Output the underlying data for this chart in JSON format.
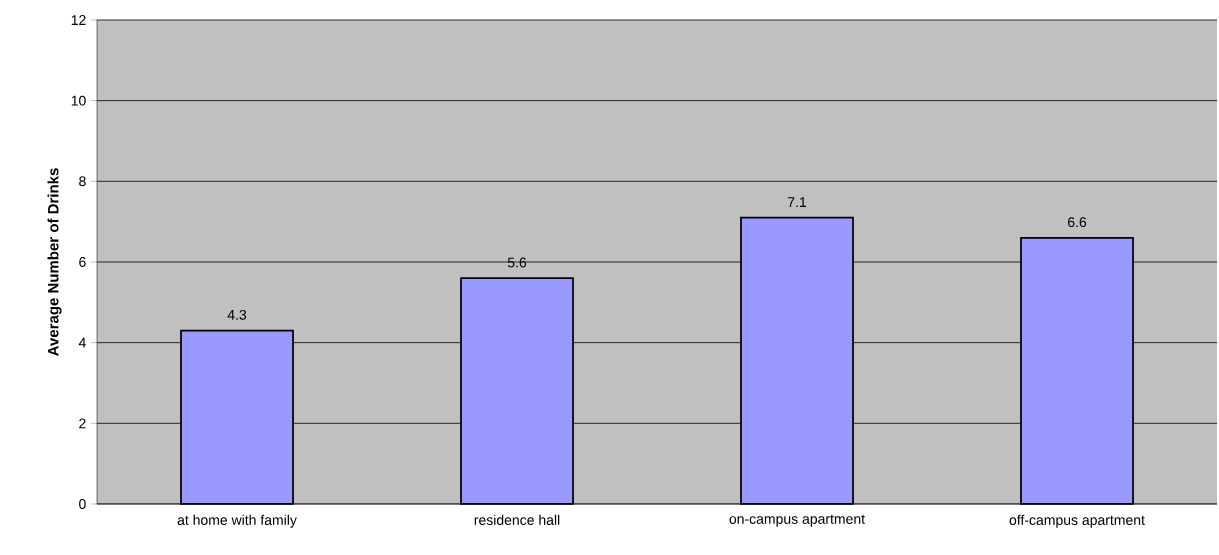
{
  "chart_data": {
    "type": "bar",
    "ylabel": "Average Number of Drinks",
    "categories": [
      "at home with family",
      "residence hall",
      "on-campus apartment",
      "off-campus apartment"
    ],
    "values": [
      4.3,
      5.6,
      7.1,
      6.6
    ],
    "color": "#9999ff",
    "ylim": [
      0,
      12
    ],
    "yticks": [
      0,
      2,
      4,
      6,
      8,
      10,
      12
    ],
    "grid": "y",
    "data_labels": true
  }
}
